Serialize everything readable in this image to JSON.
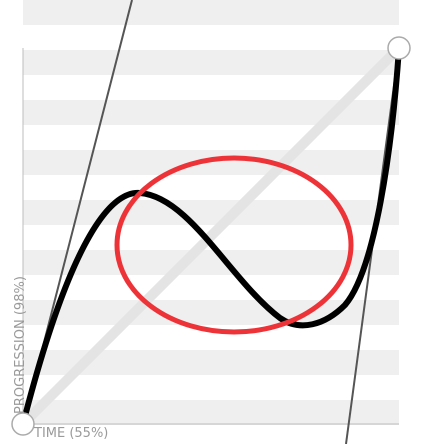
{
  "editor": {
    "x_axis_label": "TIME (55%)",
    "y_axis_label": "PROGRESSION (98%)",
    "colors": {
      "stripe": "#efefef",
      "grid_background": "#ffffff",
      "diagonal": "#e4e4e4",
      "curve": "#000000",
      "handle_line": "#555555",
      "highlight_circle": "#ee3338",
      "endpoint_fill": "#ffffff",
      "endpoint_stroke": "#aaaaaa",
      "axis_text": "#9a9a9a"
    },
    "icons": {
      "start_point": "endpoint-circle-icon",
      "end_point": "endpoint-circle-icon"
    }
  }
}
